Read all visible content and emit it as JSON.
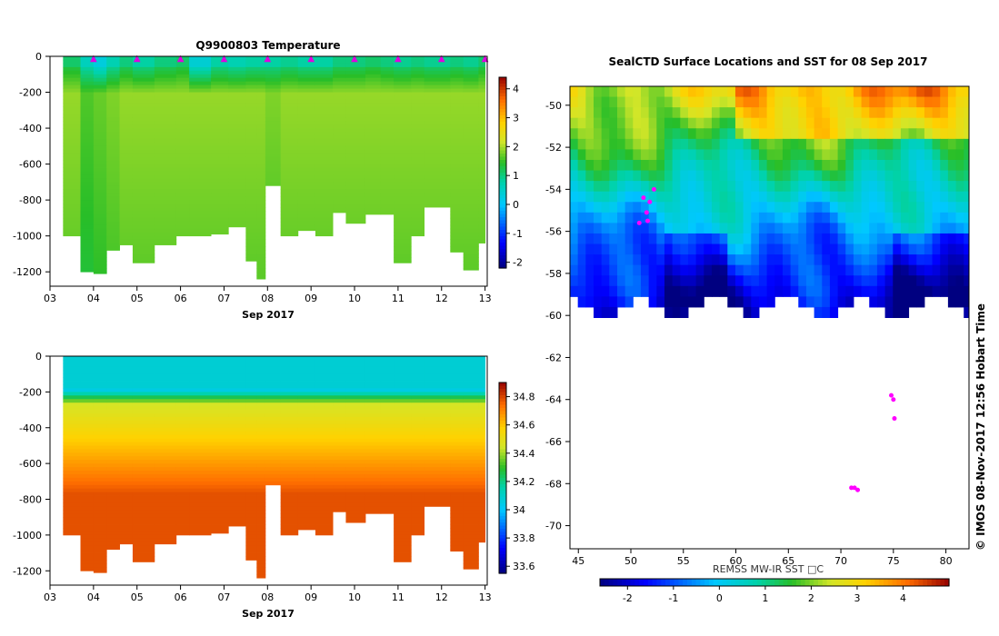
{
  "chart_data": [
    {
      "type": "heatmap",
      "id": "temperature_section",
      "title": "Q9900803  Temperature",
      "xlabel": "Sep 2017",
      "ylabel": "",
      "x_ticks": [
        "03",
        "04",
        "05",
        "06",
        "07",
        "08",
        "09",
        "10",
        "11",
        "12",
        "13"
      ],
      "xlim": [
        3.0,
        13.05
      ],
      "ylim": [
        -1280,
        0
      ],
      "y_ticks": [
        0,
        -200,
        -400,
        -600,
        -800,
        -1000,
        -1200
      ],
      "colorbar": {
        "ticks": [
          4,
          3,
          2,
          1,
          0,
          -1,
          -2
        ],
        "range": [
          -2.2,
          4.4
        ]
      },
      "profile_markers_day": [
        4.0,
        5.0,
        6.0,
        7.0,
        8.0,
        9.0,
        10.0,
        11.0,
        12.0,
        13.0
      ],
      "profiles": [
        {
          "t0": 3.3,
          "t1": 3.7,
          "depth": 1000,
          "surf": 1.3,
          "deep": 1.9
        },
        {
          "t0": 3.7,
          "t1": 4.0,
          "depth": 1200,
          "surf": 0.8,
          "deep": 1.6
        },
        {
          "t0": 4.0,
          "t1": 4.3,
          "depth": 1210,
          "surf": 0.5,
          "deep": 1.7
        },
        {
          "t0": 4.3,
          "t1": 4.6,
          "depth": 1080,
          "surf": 0.9,
          "deep": 1.8
        },
        {
          "t0": 4.6,
          "t1": 4.9,
          "depth": 1050,
          "surf": 1.2,
          "deep": 1.9
        },
        {
          "t0": 4.9,
          "t1": 5.4,
          "depth": 1150,
          "surf": 1.0,
          "deep": 1.9
        },
        {
          "t0": 5.4,
          "t1": 5.9,
          "depth": 1050,
          "surf": 1.2,
          "deep": 1.9
        },
        {
          "t0": 5.9,
          "t1": 6.2,
          "depth": 1000,
          "surf": 1.3,
          "deep": 1.9
        },
        {
          "t0": 6.2,
          "t1": 6.7,
          "depth": 1000,
          "surf": 0.6,
          "deep": 1.9
        },
        {
          "t0": 6.7,
          "t1": 7.1,
          "depth": 990,
          "surf": 1.0,
          "deep": 1.9
        },
        {
          "t0": 7.1,
          "t1": 7.5,
          "depth": 950,
          "surf": 0.9,
          "deep": 1.9
        },
        {
          "t0": 7.5,
          "t1": 7.75,
          "depth": 1140,
          "surf": 1.0,
          "deep": 1.9
        },
        {
          "t0": 7.75,
          "t1": 7.95,
          "depth": 1240,
          "surf": 1.0,
          "deep": 1.9
        },
        {
          "t0": 7.95,
          "t1": 8.3,
          "depth": 720,
          "surf": 1.0,
          "deep": 1.8
        },
        {
          "t0": 8.3,
          "t1": 8.7,
          "depth": 1000,
          "surf": 1.1,
          "deep": 1.9
        },
        {
          "t0": 8.7,
          "t1": 9.1,
          "depth": 970,
          "surf": 1.0,
          "deep": 1.9
        },
        {
          "t0": 9.1,
          "t1": 9.5,
          "depth": 1000,
          "surf": 1.0,
          "deep": 1.9
        },
        {
          "t0": 9.5,
          "t1": 9.8,
          "depth": 870,
          "surf": 1.2,
          "deep": 1.9
        },
        {
          "t0": 9.8,
          "t1": 10.25,
          "depth": 930,
          "surf": 1.2,
          "deep": 1.9
        },
        {
          "t0": 10.25,
          "t1": 10.6,
          "depth": 880,
          "surf": 1.3,
          "deep": 1.9
        },
        {
          "t0": 10.6,
          "t1": 10.9,
          "depth": 880,
          "surf": 1.2,
          "deep": 1.9
        },
        {
          "t0": 10.9,
          "t1": 11.3,
          "depth": 1150,
          "surf": 1.1,
          "deep": 1.9
        },
        {
          "t0": 11.3,
          "t1": 11.6,
          "depth": 1000,
          "surf": 1.2,
          "deep": 1.9
        },
        {
          "t0": 11.6,
          "t1": 12.2,
          "depth": 840,
          "surf": 1.1,
          "deep": 1.9
        },
        {
          "t0": 12.2,
          "t1": 12.5,
          "depth": 1090,
          "surf": 1.2,
          "deep": 1.9
        },
        {
          "t0": 12.5,
          "t1": 12.85,
          "depth": 1190,
          "surf": 1.1,
          "deep": 1.9
        },
        {
          "t0": 12.85,
          "t1": 13.0,
          "depth": 1040,
          "surf": 1.3,
          "deep": 1.9
        }
      ]
    },
    {
      "type": "heatmap",
      "id": "salinity_section",
      "title": "",
      "xlabel": "Sep 2017",
      "ylabel": "",
      "x_ticks": [
        "03",
        "04",
        "05",
        "06",
        "07",
        "08",
        "09",
        "10",
        "11",
        "12",
        "13"
      ],
      "xlim": [
        3.0,
        13.05
      ],
      "ylim": [
        -1280,
        0
      ],
      "y_ticks": [
        0,
        -200,
        -400,
        -600,
        -800,
        -1000,
        -1200
      ],
      "colorbar": {
        "ticks": [
          34.8,
          34.6,
          34.4,
          34.2,
          34,
          33.8,
          33.6
        ],
        "range": [
          33.55,
          34.9
        ]
      },
      "surface_value": 34.0,
      "halocline_value": 34.45,
      "deep_value": 34.78
    },
    {
      "type": "heatmap",
      "id": "sst_map",
      "title": "SealCTD Surface Locations and SST for 08 Sep 2017",
      "xlabel": "",
      "ylabel": "",
      "x_ticks": [
        45,
        50,
        55,
        60,
        65,
        70,
        75,
        80
      ],
      "y_ticks": [
        -50,
        -52,
        -54,
        -56,
        -58,
        -60,
        -62,
        -64,
        -66,
        -68,
        -70
      ],
      "xlim": [
        44.2,
        82.2
      ],
      "ylim": [
        -71.1,
        -49.1
      ],
      "colorbar": {
        "label": "REMSS MW-IR SST □C",
        "ticks": [
          -2,
          -1,
          0,
          1,
          2,
          3,
          4
        ],
        "range": [
          -2.6,
          5.0
        ]
      },
      "track_positions": [
        {
          "lon": 51.5,
          "lat": -55.1
        },
        {
          "lon": 51.8,
          "lat": -54.6
        },
        {
          "lon": 51.2,
          "lat": -54.4
        },
        {
          "lon": 52.2,
          "lat": -54.0
        },
        {
          "lon": 51.6,
          "lat": -55.5
        },
        {
          "lon": 50.8,
          "lat": -55.6
        },
        {
          "lon": 71.3,
          "lat": -68.2
        },
        {
          "lon": 71.6,
          "lat": -68.3
        },
        {
          "lon": 71.0,
          "lat": -68.2
        },
        {
          "lon": 75.0,
          "lat": -64.0
        },
        {
          "lon": 75.1,
          "lat": -64.9
        },
        {
          "lon": 74.8,
          "lat": -63.8
        }
      ],
      "side_label": "©  IMOS 08-Nov-2017 12:56 Hobart Time"
    }
  ]
}
